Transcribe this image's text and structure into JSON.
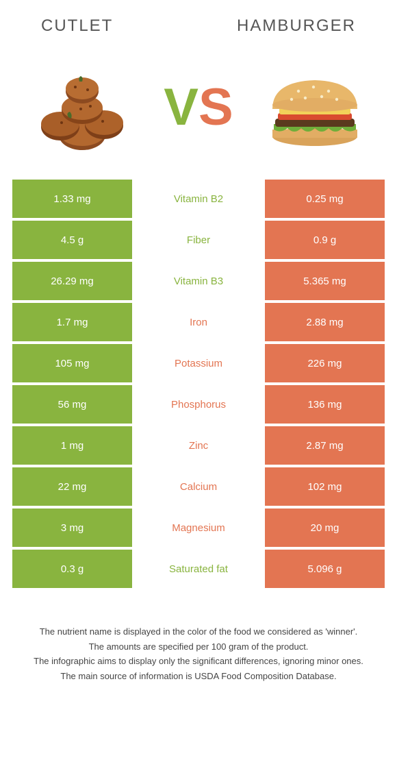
{
  "colors": {
    "green": "#89b43f",
    "orange": "#e37552",
    "text": "#555555",
    "white": "#ffffff"
  },
  "header": {
    "left": "Cutlet",
    "right": "Hamburger"
  },
  "vs": {
    "v": "V",
    "s": "S"
  },
  "rows": [
    {
      "left": "1.33 mg",
      "mid": "Vitamin B2",
      "right": "0.25 mg",
      "winner": "left"
    },
    {
      "left": "4.5 g",
      "mid": "Fiber",
      "right": "0.9 g",
      "winner": "left"
    },
    {
      "left": "26.29 mg",
      "mid": "Vitamin B3",
      "right": "5.365 mg",
      "winner": "left"
    },
    {
      "left": "1.7 mg",
      "mid": "Iron",
      "right": "2.88 mg",
      "winner": "right"
    },
    {
      "left": "105 mg",
      "mid": "Potassium",
      "right": "226 mg",
      "winner": "right"
    },
    {
      "left": "56 mg",
      "mid": "Phosphorus",
      "right": "136 mg",
      "winner": "right"
    },
    {
      "left": "1 mg",
      "mid": "Zinc",
      "right": "2.87 mg",
      "winner": "right"
    },
    {
      "left": "22 mg",
      "mid": "Calcium",
      "right": "102 mg",
      "winner": "right"
    },
    {
      "left": "3 mg",
      "mid": "Magnesium",
      "right": "20 mg",
      "winner": "right"
    },
    {
      "left": "0.3 g",
      "mid": "Saturated fat",
      "right": "5.096 g",
      "winner": "left"
    }
  ],
  "footnotes": [
    "The nutrient name is displayed in the color of the food we considered as 'winner'.",
    "The amounts are specified per 100 gram of the product.",
    "The infographic aims to display only the significant differences, ignoring minor ones.",
    "The main source of information is USDA Food Composition Database."
  ]
}
